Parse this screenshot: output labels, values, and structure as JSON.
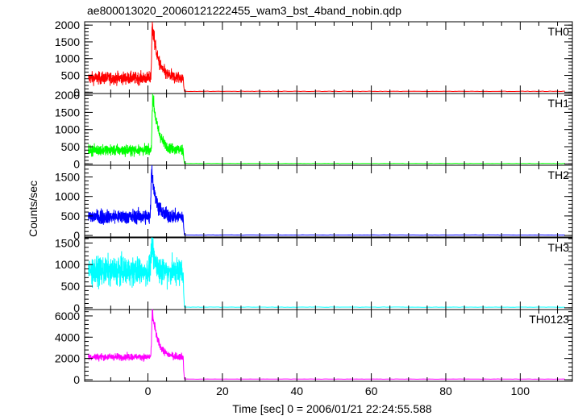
{
  "chart_data": {
    "type": "line",
    "title": "ae800013020_20060121222455_wam3_bst_4band_nobin.qdp",
    "xlabel": "Time [sec] 0 = 2006/01/21 22:24:55.588",
    "ylabel": "Counts/sec",
    "xlim": [
      -17,
      114
    ],
    "x_ticks": [
      0,
      20,
      40,
      60,
      80,
      100
    ],
    "grid": false,
    "panels": [
      {
        "name": "TH0",
        "color": "#ff0000",
        "ylim": [
          -40,
          2100
        ],
        "y_ticks": [
          0,
          500,
          1000,
          1500,
          2000
        ],
        "burst": {
          "t_start": -16,
          "t_end": 9.5,
          "background": 420,
          "noise": 130,
          "peak_time": 1.2,
          "peak": 2050,
          "decay": 1.5
        },
        "baseline_after": 25
      },
      {
        "name": "TH1",
        "color": "#00ff00",
        "ylim": [
          -40,
          2050
        ],
        "y_ticks": [
          0,
          500,
          1000,
          1500,
          2000
        ],
        "burst": {
          "t_start": -16,
          "t_end": 9.5,
          "background": 400,
          "noise": 110,
          "peak_time": 1.3,
          "peak": 2030,
          "decay": 1.5
        },
        "baseline_after": 12
      },
      {
        "name": "TH2",
        "color": "#0000ff",
        "ylim": [
          -40,
          1800
        ],
        "y_ticks": [
          0,
          500,
          1000,
          1500
        ],
        "burst": {
          "t_start": -16,
          "t_end": 9.5,
          "background": 480,
          "noise": 130,
          "peak_time": 1.0,
          "peak": 1750,
          "decay": 1.2
        },
        "baseline_after": 10
      },
      {
        "name": "TH3",
        "color": "#00ffff",
        "ylim": [
          -40,
          1620
        ],
        "y_ticks": [
          0,
          500,
          1000,
          1500
        ],
        "burst": {
          "t_start": -16,
          "t_end": 9.5,
          "background": 850,
          "noise": 230,
          "peak_time": 1.0,
          "peak": 1450,
          "decay": 1.0
        },
        "baseline_after": 15
      },
      {
        "name": "TH0123",
        "color": "#ff00ff",
        "ylim": [
          -150,
          6600
        ],
        "y_ticks": [
          0,
          2000,
          4000,
          6000
        ],
        "burst": {
          "t_start": -16,
          "t_end": 9.5,
          "background": 2150,
          "noise": 230,
          "peak_time": 1.2,
          "peak": 6400,
          "decay": 1.5
        },
        "baseline_after": 60
      }
    ]
  }
}
